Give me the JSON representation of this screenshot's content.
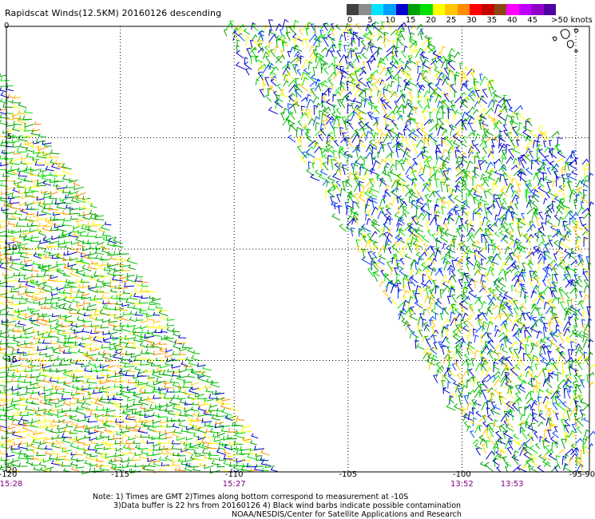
{
  "title": "Rapidscat Winds(12.5KM) 20160126 descending",
  "colorbar": {
    "colors": [
      "#404040",
      "#8c8c8c",
      "#00e5ff",
      "#00a0ff",
      "#0000cc",
      "#00a000",
      "#00e000",
      "#ffff00",
      "#ffc800",
      "#ff8c00",
      "#ff0000",
      "#c80000",
      "#8c4614",
      "#ff00ff",
      "#c000ff",
      "#9000c8",
      "#5000a0"
    ],
    "labels": [
      "0",
      "5",
      "10",
      "15",
      "20",
      "25",
      "30",
      "35",
      "40",
      "45"
    ],
    "unit_label": ">50 knots"
  },
  "map": {
    "lon_min": -120,
    "lon_max": -95,
    "lat_min": -20,
    "lat_max": 0,
    "gridline_lons": [
      -115,
      -110,
      -105,
      -100,
      -95
    ],
    "gridline_lats": [
      -5,
      -10,
      -15
    ],
    "lat_labels": [
      "0",
      "-5",
      "-10",
      "-15",
      "-20"
    ],
    "lon_labels": [
      "-120",
      "-115",
      "-110",
      "-105",
      "-100",
      "-95",
      "-90"
    ],
    "swaths": [
      {
        "name": "western swath",
        "pass_time": "15:28",
        "dominant": "green-yellow"
      },
      {
        "name": "eastern swath",
        "pass_time": "13:52",
        "dominant": "green-blue"
      }
    ]
  },
  "times": [
    {
      "label": "15:28",
      "lon": -120
    },
    {
      "label": "15:27",
      "lon": -110
    },
    {
      "label": "13:52",
      "lon": -100
    },
    {
      "label": "13:53",
      "lon": -97.8
    }
  ],
  "notes": {
    "line1": "Note: 1) Times are GMT 2)Times along bottom correspond to measurement at -10S",
    "line2": "3)Data buffer is 22 hrs from 20160126 4) Black wind barbs indicate possible contamination",
    "line3": "NOAA/NESDIS/Center for Satellite Applications and Research"
  }
}
